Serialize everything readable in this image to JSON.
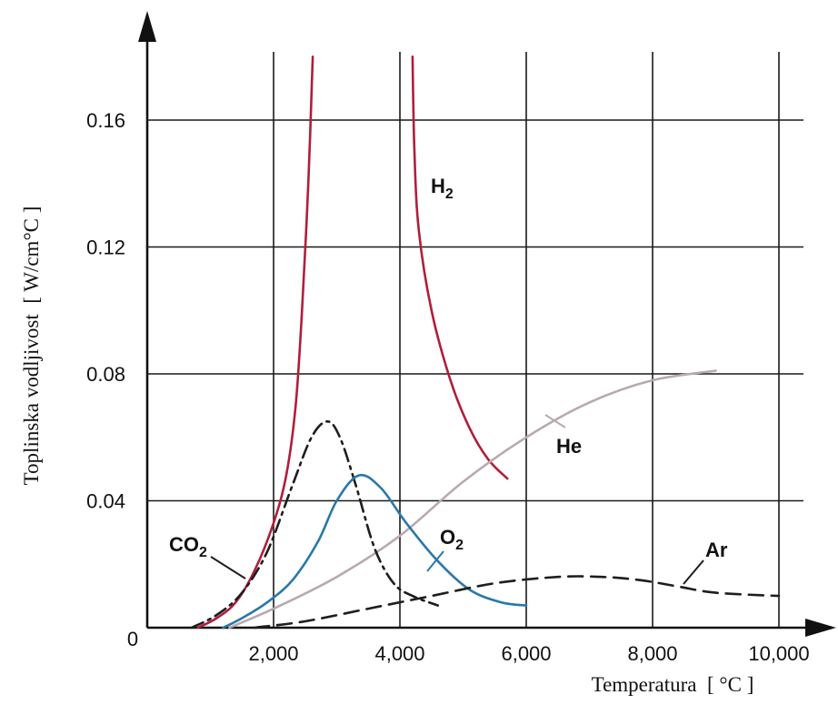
{
  "chart_data": {
    "type": "line",
    "xlabel": "Temperatura  [ °C ]",
    "ylabel": "Toplinska vodljivost  [ W/cm°C ]",
    "xlim": [
      0,
      10500
    ],
    "ylim": [
      0,
      0.185
    ],
    "x_ticks": [
      2000,
      4000,
      6000,
      8000,
      10000
    ],
    "x_tick_labels": [
      "2,000",
      "4,000",
      "6,000",
      "8,000",
      "10,000"
    ],
    "y_ticks": [
      0.04,
      0.08,
      0.12,
      0.16
    ],
    "y_tick_labels": [
      "0.04",
      "0.08",
      "0.12",
      "0.16"
    ],
    "origin_label": "0",
    "vertical_gridlines": [
      2000,
      4000,
      6000,
      8000,
      10000
    ],
    "grid": true,
    "series": [
      {
        "label": "H",
        "subscript": "2",
        "color": "#b01e3c",
        "style": "solid",
        "segments": [
          [
            [
              800,
              0
            ],
            [
              1100,
              0.003
            ],
            [
              1400,
              0.008
            ],
            [
              1700,
              0.018
            ],
            [
              2000,
              0.033
            ],
            [
              2200,
              0.048
            ],
            [
              2350,
              0.07
            ],
            [
              2450,
              0.1
            ],
            [
              2550,
              0.14
            ],
            [
              2620,
              0.18
            ]
          ],
          [
            [
              4200,
              0.18
            ],
            [
              4230,
              0.15
            ],
            [
              4300,
              0.125
            ],
            [
              4500,
              0.1
            ],
            [
              4800,
              0.078
            ],
            [
              5100,
              0.063
            ],
            [
              5400,
              0.053
            ],
            [
              5700,
              0.047
            ]
          ]
        ]
      },
      {
        "label": "He",
        "subscript": "",
        "color": "#b9a9b1",
        "style": "solid",
        "points": [
          [
            1300,
            0
          ],
          [
            2000,
            0.006
          ],
          [
            3000,
            0.016
          ],
          [
            4000,
            0.029
          ],
          [
            5000,
            0.046
          ],
          [
            6000,
            0.06
          ],
          [
            7000,
            0.071
          ],
          [
            8000,
            0.078
          ],
          [
            9000,
            0.081
          ]
        ]
      },
      {
        "label": "CO",
        "subscript": "2",
        "color": "#1e1e1e",
        "style": "dashdot",
        "points": [
          [
            700,
            0
          ],
          [
            1100,
            0.004
          ],
          [
            1500,
            0.011
          ],
          [
            1900,
            0.024
          ],
          [
            2300,
            0.045
          ],
          [
            2600,
            0.06
          ],
          [
            2850,
            0.065
          ],
          [
            3050,
            0.06
          ],
          [
            3300,
            0.045
          ],
          [
            3600,
            0.025
          ],
          [
            3900,
            0.014
          ],
          [
            4200,
            0.01
          ],
          [
            4600,
            0.007
          ]
        ]
      },
      {
        "label": "O",
        "subscript": "2",
        "color": "#2a78a8",
        "style": "solid",
        "points": [
          [
            1200,
            0
          ],
          [
            1500,
            0.003
          ],
          [
            1900,
            0.008
          ],
          [
            2300,
            0.015
          ],
          [
            2700,
            0.027
          ],
          [
            3000,
            0.04
          ],
          [
            3350,
            0.048
          ],
          [
            3700,
            0.044
          ],
          [
            4100,
            0.033
          ],
          [
            4600,
            0.021
          ],
          [
            5100,
            0.012
          ],
          [
            5600,
            0.008
          ],
          [
            6000,
            0.007
          ]
        ]
      },
      {
        "label": "Ar",
        "subscript": "",
        "color": "#1e1e1e",
        "style": "dashed",
        "points": [
          [
            1700,
            0
          ],
          [
            2500,
            0.002
          ],
          [
            3500,
            0.006
          ],
          [
            4500,
            0.01
          ],
          [
            5500,
            0.014
          ],
          [
            6500,
            0.016
          ],
          [
            7200,
            0.016
          ],
          [
            7800,
            0.015
          ],
          [
            8400,
            0.013
          ],
          [
            9000,
            0.011
          ],
          [
            10000,
            0.01
          ]
        ]
      }
    ]
  }
}
